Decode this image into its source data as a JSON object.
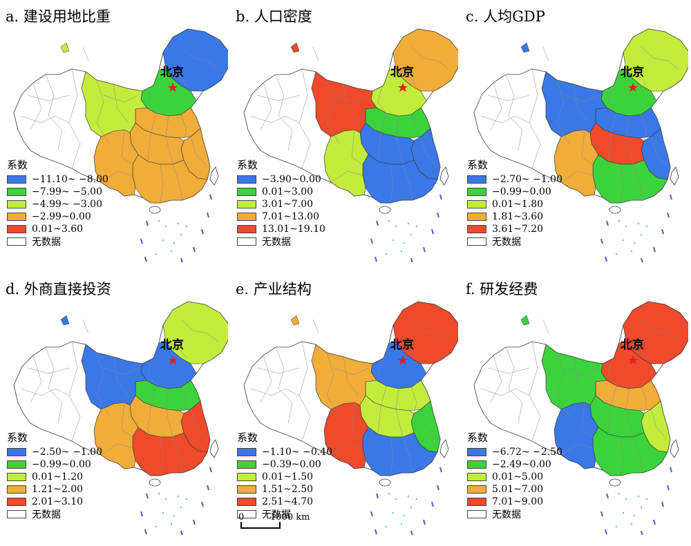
{
  "panels": [
    {
      "id": "a",
      "title": "a. 建设用地比重",
      "beijing": "北京",
      "legend_title": "系数",
      "legend": [
        {
          "label": "−11.10~ −8.00",
          "color": "#3b78e7"
        },
        {
          "label": "−7.99~ −5.00",
          "color": "#3cd23c"
        },
        {
          "label": "−4.99~ −3.00",
          "color": "#c3ec3d"
        },
        {
          "label": "−2.99~0.00",
          "color": "#f0ad3a"
        },
        {
          "label": "0.01~3.60",
          "color": "#ee4a2b"
        },
        {
          "label": "无数据",
          "color": "#ffffff"
        }
      ]
    },
    {
      "id": "b",
      "title": "b. 人口密度",
      "beijing": "北京",
      "legend_title": "系数",
      "legend": [
        {
          "label": "−3.90~0.00",
          "color": "#3b78e7"
        },
        {
          "label": "0.01~3.00",
          "color": "#3cd23c"
        },
        {
          "label": "3.01~7.00",
          "color": "#c3ec3d"
        },
        {
          "label": "7.01~13.00",
          "color": "#f0ad3a"
        },
        {
          "label": "13.01~19.10",
          "color": "#ee4a2b"
        },
        {
          "label": "无数据",
          "color": "#ffffff"
        }
      ]
    },
    {
      "id": "c",
      "title": "c. 人均GDP",
      "beijing": "北京",
      "legend_title": "系数",
      "legend": [
        {
          "label": "−2.70~ −1.00",
          "color": "#3b78e7"
        },
        {
          "label": "−0.99~0.00",
          "color": "#3cd23c"
        },
        {
          "label": "0.01~1.80",
          "color": "#c3ec3d"
        },
        {
          "label": "1.81~3.60",
          "color": "#f0ad3a"
        },
        {
          "label": "3.61~7.20",
          "color": "#ee4a2b"
        },
        {
          "label": "无数据",
          "color": "#ffffff"
        }
      ]
    },
    {
      "id": "d",
      "title": "d. 外商直接投资",
      "beijing": "北京",
      "legend_title": "系数",
      "legend": [
        {
          "label": "−2.50~ −1.00",
          "color": "#3b78e7"
        },
        {
          "label": "−0.99~0.00",
          "color": "#3cd23c"
        },
        {
          "label": "0.01~1.20",
          "color": "#c3ec3d"
        },
        {
          "label": "1.21~2.00",
          "color": "#f0ad3a"
        },
        {
          "label": "2.01~3.10",
          "color": "#ee4a2b"
        },
        {
          "label": "无数据",
          "color": "#ffffff"
        }
      ]
    },
    {
      "id": "e",
      "title": "e. 产业结构",
      "beijing": "北京",
      "legend_title": "系数",
      "legend": [
        {
          "label": "−1.10~ −0.40",
          "color": "#3b78e7"
        },
        {
          "label": "−0.39~0.00",
          "color": "#3cd23c"
        },
        {
          "label": "0.01~1.50",
          "color": "#c3ec3d"
        },
        {
          "label": "1.51~2.50",
          "color": "#f0ad3a"
        },
        {
          "label": "2.51~4.70",
          "color": "#ee4a2b"
        },
        {
          "label": "无数据",
          "color": "#ffffff"
        }
      ]
    },
    {
      "id": "f",
      "title": "f. 研发经费",
      "beijing": "北京",
      "legend_title": "系数",
      "legend": [
        {
          "label": "−6.72~ −2.50",
          "color": "#3b78e7"
        },
        {
          "label": "−2.49~0.00",
          "color": "#3cd23c"
        },
        {
          "label": "0.01~5.00",
          "color": "#c3ec3d"
        },
        {
          "label": "5.01~7.00",
          "color": "#f0ad3a"
        },
        {
          "label": "7.01~9.00",
          "color": "#ee4a2b"
        },
        {
          "label": "无数据",
          "color": "#ffffff"
        }
      ]
    }
  ],
  "scale": {
    "start": "0",
    "end": "1000 km"
  },
  "colors": {
    "outline": "#555555",
    "capital_star": "#e0201c",
    "island_dots": "#6fb7e8"
  }
}
